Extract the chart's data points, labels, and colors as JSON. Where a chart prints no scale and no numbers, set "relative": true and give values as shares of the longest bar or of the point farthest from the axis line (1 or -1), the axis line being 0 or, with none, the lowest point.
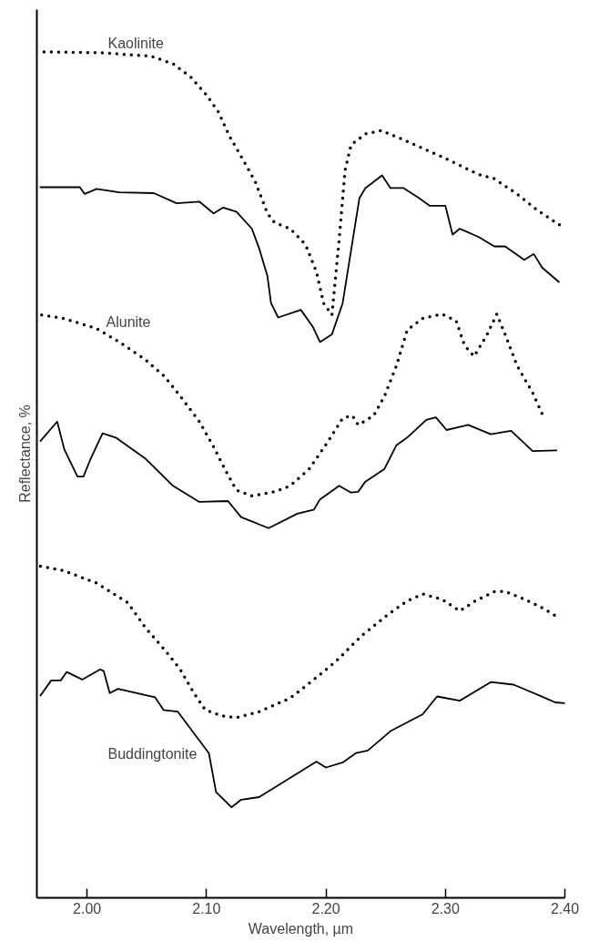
{
  "chart_data": {
    "type": "line",
    "relative": true,
    "xlabel": "Wavelength, µm",
    "ylabel": "Reflectance, %",
    "xlim": [
      1.958,
      2.4
    ],
    "xticks": [
      {
        "value": 2.0,
        "label": "2.00"
      },
      {
        "value": 2.1,
        "label": "2.10"
      },
      {
        "value": 2.2,
        "label": "2.20"
      },
      {
        "value": 2.3,
        "label": "2.30"
      },
      {
        "value": 2.4,
        "label": "2.40"
      }
    ],
    "grid": false,
    "marker": "none",
    "annotations": [
      "Kaolinite",
      "Alunite",
      "Buddingtonite"
    ],
    "series": [
      {
        "color": "#000000",
        "line_style": "dotted",
        "x": [
          1.964,
          2.011,
          2.053,
          2.072,
          2.087,
          2.1,
          2.11,
          2.119,
          2.132,
          2.141,
          2.151,
          2.157,
          2.17,
          2.183,
          2.192,
          2.198,
          2.205,
          2.211,
          2.216,
          2.221,
          2.233,
          2.246,
          2.265,
          2.297,
          2.328,
          2.341,
          2.36,
          2.376,
          2.398
        ],
        "values": [
          1.0,
          0.999,
          0.995,
          0.986,
          0.97,
          0.949,
          0.929,
          0.901,
          0.869,
          0.846,
          0.809,
          0.798,
          0.791,
          0.772,
          0.74,
          0.703,
          0.689,
          0.777,
          0.86,
          0.89,
          0.903,
          0.907,
          0.896,
          0.876,
          0.855,
          0.85,
          0.832,
          0.814,
          0.793
        ]
      },
      {
        "color": "#000000",
        "line_style": "solid",
        "x": [
          1.961,
          1.994,
          1.998,
          2.008,
          2.027,
          2.056,
          2.075,
          2.094,
          2.106,
          2.114,
          2.125,
          2.138,
          2.144,
          2.151,
          2.154,
          2.16,
          2.179,
          2.189,
          2.195,
          2.205,
          2.214,
          2.228,
          2.233,
          2.247,
          2.254,
          2.265,
          2.278,
          2.287,
          2.3,
          2.306,
          2.312,
          2.328,
          2.341,
          2.35,
          2.366,
          2.374,
          2.381,
          2.395
        ],
        "values": [
          0.84,
          0.84,
          0.832,
          0.838,
          0.834,
          0.833,
          0.821,
          0.823,
          0.809,
          0.816,
          0.811,
          0.791,
          0.768,
          0.735,
          0.703,
          0.686,
          0.695,
          0.675,
          0.657,
          0.666,
          0.703,
          0.827,
          0.839,
          0.854,
          0.839,
          0.839,
          0.827,
          0.818,
          0.818,
          0.784,
          0.791,
          0.781,
          0.77,
          0.77,
          0.754,
          0.761,
          0.745,
          0.728
        ]
      },
      {
        "color": "#000000",
        "line_style": "dotted",
        "x": [
          1.962,
          1.98,
          2.008,
          2.027,
          2.049,
          2.065,
          2.078,
          2.094,
          2.106,
          2.116,
          2.125,
          2.138,
          2.157,
          2.17,
          2.186,
          2.202,
          2.214,
          2.222,
          2.227,
          2.24,
          2.249,
          2.259,
          2.268,
          2.281,
          2.297,
          2.309,
          2.316,
          2.324,
          2.335,
          2.343,
          2.35,
          2.36,
          2.373,
          2.381
        ],
        "values": [
          0.689,
          0.685,
          0.673,
          0.657,
          0.636,
          0.616,
          0.593,
          0.563,
          0.533,
          0.505,
          0.482,
          0.475,
          0.48,
          0.487,
          0.507,
          0.54,
          0.567,
          0.57,
          0.559,
          0.57,
          0.593,
          0.629,
          0.671,
          0.685,
          0.69,
          0.682,
          0.653,
          0.64,
          0.666,
          0.69,
          0.666,
          0.629,
          0.597,
          0.572
        ]
      },
      {
        "color": "#000000",
        "line_style": "solid",
        "x": [
          1.961,
          1.975,
          1.981,
          1.992,
          1.997,
          2.003,
          2.013,
          2.024,
          2.049,
          2.072,
          2.094,
          2.118,
          2.129,
          2.152,
          2.176,
          2.19,
          2.195,
          2.211,
          2.221,
          2.227,
          2.233,
          2.249,
          2.259,
          2.268,
          2.284,
          2.292,
          2.301,
          2.319,
          2.338,
          2.355,
          2.373,
          2.393
        ],
        "values": [
          0.54,
          0.563,
          0.53,
          0.498,
          0.498,
          0.519,
          0.549,
          0.544,
          0.519,
          0.487,
          0.468,
          0.469,
          0.45,
          0.437,
          0.454,
          0.459,
          0.471,
          0.487,
          0.479,
          0.48,
          0.492,
          0.507,
          0.535,
          0.544,
          0.565,
          0.568,
          0.553,
          0.559,
          0.548,
          0.552,
          0.528,
          0.529
        ]
      },
      {
        "color": "#000000",
        "line_style": "dotted",
        "x": [
          1.961,
          1.98,
          2.008,
          2.034,
          2.049,
          2.065,
          2.078,
          2.089,
          2.099,
          2.113,
          2.125,
          2.144,
          2.17,
          2.189,
          2.208,
          2.23,
          2.252,
          2.268,
          2.281,
          2.297,
          2.312,
          2.325,
          2.341,
          2.35,
          2.366,
          2.382,
          2.395
        ],
        "values": [
          0.392,
          0.387,
          0.372,
          0.349,
          0.319,
          0.293,
          0.27,
          0.243,
          0.222,
          0.215,
          0.213,
          0.22,
          0.236,
          0.257,
          0.279,
          0.31,
          0.335,
          0.351,
          0.359,
          0.353,
          0.339,
          0.351,
          0.362,
          0.362,
          0.353,
          0.342,
          0.331
        ]
      },
      {
        "color": "#000000",
        "line_style": "solid",
        "x": [
          1.961,
          1.97,
          1.978,
          1.983,
          1.996,
          2.011,
          2.014,
          2.019,
          2.026,
          2.057,
          2.064,
          2.076,
          2.102,
          2.108,
          2.121,
          2.129,
          2.144,
          2.192,
          2.2,
          2.214,
          2.225,
          2.235,
          2.254,
          2.281,
          2.293,
          2.312,
          2.338,
          2.357,
          2.379,
          2.392,
          2.4
        ],
        "values": [
          0.239,
          0.257,
          0.257,
          0.267,
          0.258,
          0.27,
          0.268,
          0.242,
          0.247,
          0.237,
          0.222,
          0.22,
          0.171,
          0.125,
          0.107,
          0.116,
          0.119,
          0.161,
          0.154,
          0.16,
          0.171,
          0.174,
          0.197,
          0.217,
          0.238,
          0.233,
          0.255,
          0.252,
          0.239,
          0.231,
          0.23
        ]
      }
    ]
  }
}
